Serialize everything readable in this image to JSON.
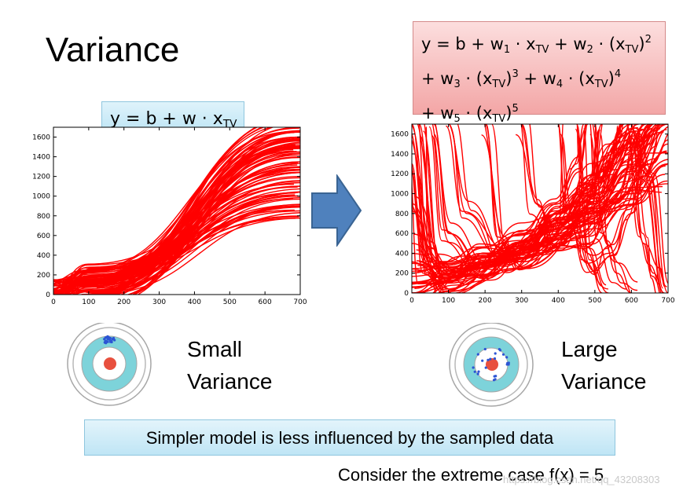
{
  "slide": {
    "title": "Variance",
    "linear_formula": {
      "lead": "y = b + w · x",
      "sub": "TV"
    },
    "poly_formula": {
      "line1": {
        "a": "y = b + w",
        "a_sub": "1",
        "b": " · x",
        "b_sub": "TV",
        "c": " + w",
        "c_sub": "2",
        "d": " · (x",
        "d_sub": "TV",
        "e": ")",
        "e_sup": "2"
      },
      "line2": {
        "a": "+ w",
        "a_sub": "3",
        "b": " · (x",
        "b_sub": "TV",
        "c": ")",
        "c_sup": "3",
        "d": " + w",
        "d_sub": "4",
        "e": " · (x",
        "e_sub": "TV",
        "f": ")",
        "f_sup": "4"
      },
      "line3": {
        "a": "+ w",
        "a_sub": "5",
        "b": " · (x",
        "b_sub": "TV",
        "c": ")",
        "c_sup": "5"
      }
    },
    "small_label": {
      "line1": "Small",
      "line2": "Variance"
    },
    "large_label": {
      "line1": "Large",
      "line2": "Variance"
    },
    "conclusion": "Simpler model is less influenced by the sampled data",
    "extreme_case": "Consider the extreme case f(x) = 5",
    "watermark": "https://blog.csdn.net/qq_43208303"
  },
  "colors": {
    "curve": "#ff0000",
    "arrow": "#4f81bd",
    "target_ring": "#7dd3da",
    "bullseye": "#e8503e",
    "shots": "#2c55d4"
  },
  "icons": [
    "right-arrow-icon",
    "target-icon"
  ],
  "chart_data": [
    {
      "type": "line",
      "model": "linear",
      "xlim": [
        0,
        700
      ],
      "ylim": [
        0,
        1700
      ],
      "xticks": [
        0,
        100,
        200,
        300,
        400,
        500,
        600,
        700
      ],
      "yticks": [
        0,
        200,
        400,
        600,
        800,
        1000,
        1200,
        1400,
        1600
      ],
      "series_count": 100,
      "series": [
        {
          "values": [
            [
              0,
              0
            ],
            [
              100,
              150
            ],
            [
              700,
              1700
            ]
          ]
        },
        {
          "values": [
            [
              0,
              20
            ],
            [
              100,
              170
            ],
            [
              700,
              1600
            ]
          ]
        },
        {
          "values": [
            [
              0,
              30
            ],
            [
              100,
              160
            ],
            [
              700,
              1500
            ]
          ]
        },
        {
          "values": [
            [
              0,
              10
            ],
            [
              100,
              140
            ],
            [
              700,
              1400
            ]
          ]
        },
        {
          "values": [
            [
              0,
              40
            ],
            [
              100,
              180
            ],
            [
              700,
              1300
            ]
          ]
        },
        {
          "values": [
            [
              0,
              25
            ],
            [
              100,
              150
            ],
            [
              700,
              1200
            ]
          ]
        },
        {
          "values": [
            [
              0,
              15
            ],
            [
              100,
              130
            ],
            [
              700,
              1100
            ]
          ]
        },
        {
          "values": [
            [
              0,
              35
            ],
            [
              100,
              160
            ],
            [
              700,
              1000
            ]
          ]
        },
        {
          "values": [
            [
              0,
              5
            ],
            [
              100,
              120
            ],
            [
              700,
              900
            ]
          ]
        },
        {
          "values": [
            [
              0,
              45
            ],
            [
              100,
              175
            ],
            [
              700,
              850
            ]
          ]
        },
        {
          "values": [
            [
              80,
              0
            ],
            [
              700,
              1700
            ]
          ]
        },
        {
          "values": [
            [
              100,
              0
            ],
            [
              700,
              1650
            ]
          ]
        },
        {
          "values": [
            [
              140,
              0
            ],
            [
              700,
              1580
            ]
          ]
        },
        {
          "values": [
            [
              90,
              0
            ],
            [
              700,
              1450
            ]
          ]
        },
        {
          "values": [
            [
              120,
              0
            ],
            [
              700,
              1350
            ]
          ]
        }
      ]
    },
    {
      "type": "line",
      "model": "degree-5 polynomial",
      "xlim": [
        0,
        700
      ],
      "ylim": [
        0,
        1700
      ],
      "xticks": [
        0,
        100,
        200,
        300,
        400,
        500,
        600,
        700
      ],
      "yticks": [
        0,
        200,
        400,
        600,
        800,
        1000,
        1200,
        1400,
        1600
      ],
      "series_count": 100,
      "series": [
        {
          "values": [
            [
              0,
              1700
            ],
            [
              40,
              400
            ],
            [
              100,
              120
            ],
            [
              200,
              250
            ],
            [
              300,
              500
            ],
            [
              400,
              800
            ],
            [
              500,
              1200
            ],
            [
              600,
              1500
            ],
            [
              700,
              1700
            ]
          ]
        },
        {
          "values": [
            [
              0,
              300
            ],
            [
              100,
              150
            ],
            [
              200,
              300
            ],
            [
              300,
              400
            ],
            [
              400,
              700
            ],
            [
              500,
              1000
            ],
            [
              600,
              1400
            ],
            [
              650,
              1700
            ]
          ]
        },
        {
          "values": [
            [
              20,
              1700
            ],
            [
              60,
              300
            ],
            [
              150,
              180
            ],
            [
              250,
              400
            ],
            [
              350,
              600
            ],
            [
              450,
              900
            ],
            [
              550,
              1300
            ],
            [
              620,
              1700
            ]
          ]
        },
        {
          "values": [
            [
              0,
              0
            ],
            [
              100,
              200
            ],
            [
              200,
              300
            ],
            [
              300,
              500
            ],
            [
              400,
              700
            ],
            [
              500,
              1100
            ],
            [
              600,
              1650
            ],
            [
              650,
              1200
            ],
            [
              700,
              0
            ]
          ]
        },
        {
          "values": [
            [
              60,
              1700
            ],
            [
              100,
              600
            ],
            [
              200,
              250
            ],
            [
              300,
              450
            ],
            [
              400,
              650
            ],
            [
              500,
              800
            ],
            [
              600,
              1000
            ],
            [
              700,
              1300
            ]
          ]
        },
        {
          "values": [
            [
              0,
              500
            ],
            [
              100,
              200
            ],
            [
              200,
              350
            ],
            [
              300,
              600
            ],
            [
              400,
              800
            ],
            [
              480,
              1000
            ],
            [
              520,
              1700
            ]
          ]
        },
        {
          "values": [
            [
              0,
              100
            ],
            [
              150,
              250
            ],
            [
              250,
              350
            ],
            [
              350,
              500
            ],
            [
              450,
              750
            ],
            [
              550,
              1500
            ],
            [
              580,
              1700
            ]
          ]
        },
        {
          "values": [
            [
              100,
              1700
            ],
            [
              150,
              800
            ],
            [
              250,
              300
            ],
            [
              350,
              400
            ],
            [
              450,
              600
            ],
            [
              550,
              900
            ],
            [
              650,
              1300
            ],
            [
              700,
              1500
            ]
          ]
        },
        {
          "values": [
            [
              0,
              200
            ],
            [
              100,
              300
            ],
            [
              200,
              400
            ],
            [
              300,
              500
            ],
            [
              400,
              900
            ],
            [
              450,
              1300
            ],
            [
              470,
              1700
            ]
          ]
        },
        {
          "values": [
            [
              0,
              0
            ],
            [
              200,
              250
            ],
            [
              300,
              400
            ],
            [
              400,
              600
            ],
            [
              500,
              850
            ],
            [
              600,
              1200
            ],
            [
              660,
              1700
            ]
          ]
        },
        {
          "values": [
            [
              0,
              900
            ],
            [
              80,
              100
            ],
            [
              200,
              300
            ],
            [
              300,
              450
            ],
            [
              400,
              700
            ],
            [
              500,
              950
            ],
            [
              600,
              1250
            ],
            [
              700,
              1700
            ]
          ]
        },
        {
          "values": [
            [
              200,
              1700
            ],
            [
              240,
              500
            ],
            [
              300,
              350
            ],
            [
              400,
              500
            ],
            [
              500,
              900
            ],
            [
              580,
              1700
            ]
          ]
        },
        {
          "values": [
            [
              400,
              1700
            ],
            [
              420,
              800
            ],
            [
              480,
              300
            ],
            [
              540,
              400
            ],
            [
              600,
              800
            ],
            [
              650,
              1500
            ],
            [
              680,
              1700
            ]
          ]
        },
        {
          "values": [
            [
              300,
              1700
            ],
            [
              340,
              900
            ],
            [
              400,
              450
            ],
            [
              480,
              500
            ],
            [
              560,
              900
            ],
            [
              640,
              1700
            ]
          ]
        },
        {
          "values": [
            [
              0,
              0
            ],
            [
              100,
              100
            ],
            [
              300,
              350
            ],
            [
              500,
              700
            ],
            [
              600,
              1000
            ],
            [
              700,
              1100
            ]
          ]
        },
        {
          "values": [
            [
              500,
              1700
            ],
            [
              520,
              600
            ],
            [
              560,
              200
            ],
            [
              600,
              0
            ]
          ]
        },
        {
          "values": [
            [
              600,
              1700
            ],
            [
              630,
              600
            ],
            [
              660,
              200
            ],
            [
              690,
              0
            ]
          ]
        },
        {
          "values": [
            [
              450,
              1700
            ],
            [
              480,
              400
            ],
            [
              520,
              0
            ]
          ]
        },
        {
          "values": [
            [
              0,
              1300
            ],
            [
              30,
              200
            ],
            [
              90,
              0
            ]
          ]
        }
      ]
    }
  ]
}
